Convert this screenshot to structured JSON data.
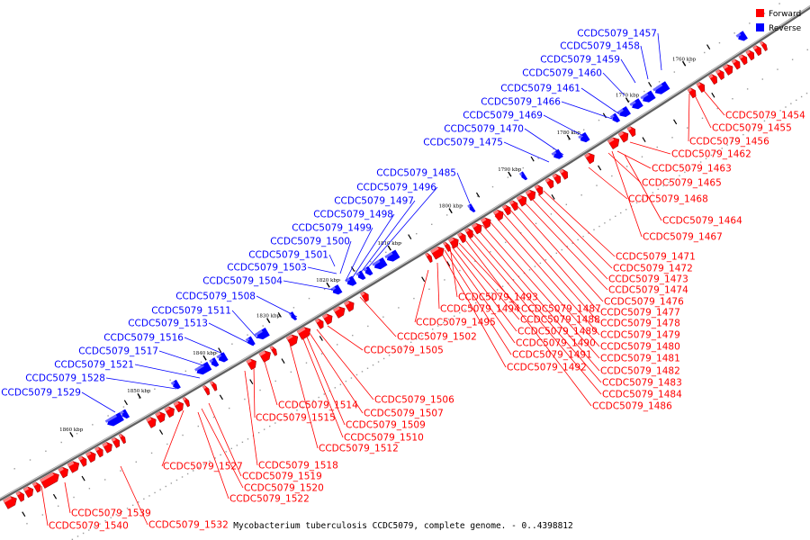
{
  "caption": "Mycobacterium tuberculosis CCDC5079, complete genome. - 0..4398812",
  "legend": [
    {
      "label": "Forward",
      "color": "#ff0000"
    },
    {
      "label": "Reverse",
      "color": "#0000ff"
    }
  ],
  "colors": {
    "forward": "#ff0000",
    "reverse": "#0000ff",
    "backbone": "#808080"
  },
  "ticks": [
    "1760 kbp",
    "1770 kbp",
    "1780 kbp",
    "1790 kbp",
    "1800 kbp",
    "1810 kbp",
    "1820 kbp",
    "1830 kbp",
    "1840 kbp",
    "1850 kbp",
    "1860 kbp"
  ],
  "reverse_labels": [
    "CCDC5079_1457",
    "CCDC5079_1458",
    "CCDC5079_1459",
    "CCDC5079_1460",
    "CCDC5079_1461",
    "CCDC5079_1466",
    "CCDC5079_1469",
    "CCDC5079_1470",
    "CCDC5079_1475",
    "CCDC5079_1485",
    "CCDC5079_1496",
    "CCDC5079_1497",
    "CCDC5079_1498",
    "CCDC5079_1499",
    "CCDC5079_1500",
    "CCDC5079_1501",
    "CCDC5079_1503",
    "CCDC5079_1504",
    "CCDC5079_1508",
    "CCDC5079_1511",
    "CCDC5079_1513",
    "CCDC5079_1516",
    "CCDC5079_1517",
    "CCDC5079_1521",
    "CCDC5079_1528",
    "CCDC5079_1529"
  ],
  "forward_labels": [
    "CCDC5079_1454",
    "CCDC5079_1455",
    "CCDC5079_1456",
    "CCDC5079_1462",
    "CCDC5079_1463",
    "CCDC5079_1465",
    "CCDC5079_1468",
    "CCDC5079_1464",
    "CCDC5079_1467",
    "CCDC5079_1471",
    "CCDC5079_1472",
    "CCDC5079_1473",
    "CCDC5079_1474",
    "CCDC5079_1476",
    "CCDC5079_1477",
    "CCDC5079_1478",
    "CCDC5079_1479",
    "CCDC5079_1480",
    "CCDC5079_1481",
    "CCDC5079_1482",
    "CCDC5079_1483",
    "CCDC5079_1484",
    "CCDC5079_1486",
    "CCDC5079_1493",
    "CCDC5079_1494",
    "CCDC5079_1487",
    "CCDC5079_1488",
    "CCDC5079_1489",
    "CCDC5079_1490",
    "CCDC5079_1491",
    "CCDC5079_1492",
    "CCDC5079_1495",
    "CCDC5079_1502",
    "CCDC5079_1505",
    "CCDC5079_1506",
    "CCDC5079_1507",
    "CCDC5079_1509",
    "CCDC5079_1510",
    "CCDC5079_1512",
    "CCDC5079_1514",
    "CCDC5079_1515",
    "CCDC5079_1518",
    "CCDC5079_1519",
    "CCDC5079_1520",
    "CCDC5079_1522",
    "CCDC5079_1527",
    "CCDC5079_1539",
    "CCDC5079_1540",
    "CCDC5079_1532"
  ]
}
